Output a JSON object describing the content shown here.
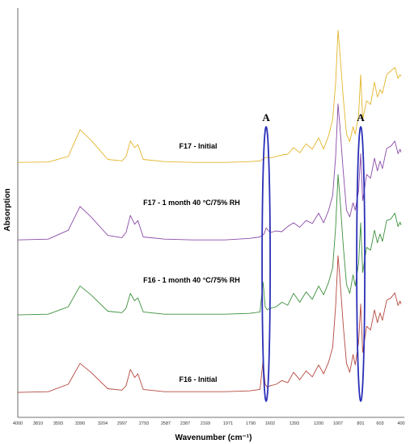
{
  "chart_data": {
    "type": "line",
    "xlabel": "Wavenumber (cm⁻¹)",
    "ylabel": "Absorption",
    "x_reversed": true,
    "xlim": [
      4000,
      400
    ],
    "tick_labels": [
      "4000",
      "3810",
      "3593",
      "3390",
      "3204",
      "2997",
      "2793",
      "2587",
      "2387",
      "2169",
      "1971",
      "1790",
      "1602",
      "1393",
      "1200",
      "1007",
      "801",
      "603",
      "400"
    ],
    "tick_values": [
      4000,
      3810,
      3593,
      3390,
      3204,
      2997,
      2793,
      2587,
      2387,
      2169,
      1971,
      1790,
      1602,
      1393,
      1200,
      1007,
      801,
      603,
      400
    ],
    "series": [
      {
        "name": "F17 - Initial",
        "color": "#e3b52a",
        "x": [
          4000,
          3700,
          3500,
          3390,
          3300,
          3150,
          3000,
          2960,
          2920,
          2880,
          2850,
          2800,
          2600,
          2300,
          2000,
          1800,
          1700,
          1640,
          1600,
          1550,
          1500,
          1450,
          1400,
          1350,
          1300,
          1250,
          1200,
          1150,
          1100,
          1060,
          1030,
          1007,
          990,
          960,
          930,
          900,
          870,
          850,
          820,
          801,
          780,
          740,
          700,
          660,
          630,
          603,
          580,
          540,
          500,
          460,
          430,
          410,
          400
        ],
        "y": [
          2,
          2.5,
          10,
          46,
          32,
          6,
          4,
          10,
          31,
          22,
          26,
          6,
          3,
          2,
          2,
          3,
          4,
          9,
          8,
          10,
          12,
          13,
          22,
          15,
          27,
          20,
          35,
          20,
          38,
          60,
          110,
          180,
          150,
          90,
          40,
          30,
          50,
          40,
          65,
          120,
          60,
          85,
          80,
          110,
          90,
          100,
          95,
          120,
          125,
          130,
          115,
          120,
          118
        ]
      },
      {
        "name": "F17 - 1 month 40 °C/75% RH",
        "color": "#8a4aa8",
        "x": [
          4000,
          3700,
          3500,
          3390,
          3300,
          3150,
          3000,
          2960,
          2920,
          2880,
          2850,
          2800,
          2600,
          2300,
          2000,
          1800,
          1700,
          1660,
          1640,
          1600,
          1550,
          1500,
          1450,
          1400,
          1350,
          1300,
          1250,
          1200,
          1150,
          1100,
          1060,
          1030,
          1007,
          990,
          960,
          930,
          900,
          870,
          850,
          820,
          801,
          780,
          740,
          700,
          660,
          630,
          603,
          580,
          540,
          500,
          460,
          430,
          410,
          400
        ],
        "y": [
          2,
          3,
          15,
          47,
          33,
          8,
          5,
          12,
          35,
          23,
          28,
          6,
          3,
          2,
          2,
          4,
          6,
          10,
          18,
          12,
          14,
          13,
          20,
          25,
          19,
          28,
          24,
          38,
          25,
          42,
          62,
          115,
          185,
          155,
          95,
          42,
          33,
          52,
          42,
          68,
          118,
          55,
          90,
          85,
          112,
          95,
          108,
          98,
          125,
          128,
          135,
          118,
          124,
          120
        ]
      },
      {
        "name": "F16 - 1 month 40 °C/75% RH",
        "color": "#3b8f3b",
        "x": [
          4000,
          3700,
          3500,
          3390,
          3300,
          3150,
          3000,
          2960,
          2920,
          2880,
          2850,
          2800,
          2600,
          2300,
          2000,
          1800,
          1700,
          1670,
          1650,
          1630,
          1600,
          1550,
          1500,
          1450,
          1400,
          1350,
          1300,
          1250,
          1200,
          1150,
          1100,
          1060,
          1030,
          1007,
          990,
          960,
          930,
          900,
          870,
          850,
          820,
          801,
          780,
          740,
          700,
          660,
          630,
          603,
          580,
          540,
          500,
          460,
          430,
          410,
          400
        ],
        "y": [
          1,
          2,
          12,
          40,
          28,
          6,
          4,
          10,
          30,
          20,
          24,
          5,
          2,
          2,
          2,
          3,
          5,
          45,
          12,
          8,
          10,
          12,
          18,
          14,
          30,
          18,
          32,
          22,
          40,
          28,
          45,
          65,
          120,
          190,
          160,
          95,
          42,
          30,
          55,
          40,
          70,
          125,
          58,
          92,
          88,
          115,
          98,
          110,
          100,
          128,
          130,
          138,
          120,
          126,
          122
        ]
      },
      {
        "name": "F16 - Initial",
        "color": "#b5483f",
        "x": [
          4000,
          3700,
          3500,
          3390,
          3300,
          3150,
          3000,
          2960,
          2920,
          2880,
          2850,
          2800,
          2600,
          2300,
          2000,
          1800,
          1700,
          1670,
          1650,
          1630,
          1600,
          1550,
          1500,
          1450,
          1400,
          1350,
          1300,
          1250,
          1200,
          1150,
          1100,
          1060,
          1030,
          1007,
          990,
          960,
          930,
          900,
          870,
          850,
          820,
          801,
          780,
          740,
          700,
          660,
          630,
          603,
          580,
          540,
          500,
          460,
          430,
          410,
          400
        ],
        "y": [
          1,
          2,
          12,
          40,
          28,
          6,
          4,
          10,
          32,
          21,
          26,
          5,
          2,
          2,
          2,
          3,
          5,
          44,
          12,
          8,
          10,
          12,
          17,
          14,
          28,
          18,
          30,
          22,
          38,
          26,
          42,
          62,
          118,
          185,
          155,
          92,
          40,
          28,
          52,
          38,
          68,
          120,
          55,
          90,
          85,
          112,
          95,
          108,
          98,
          125,
          128,
          135,
          118,
          124,
          120
        ]
      }
    ],
    "annotations": [
      {
        "label": "A",
        "x_center": 1640
      },
      {
        "label": "A",
        "x_center": 800
      }
    ],
    "annotation_color": "#2a2fb8",
    "grid": false,
    "legend": "inline labels"
  }
}
